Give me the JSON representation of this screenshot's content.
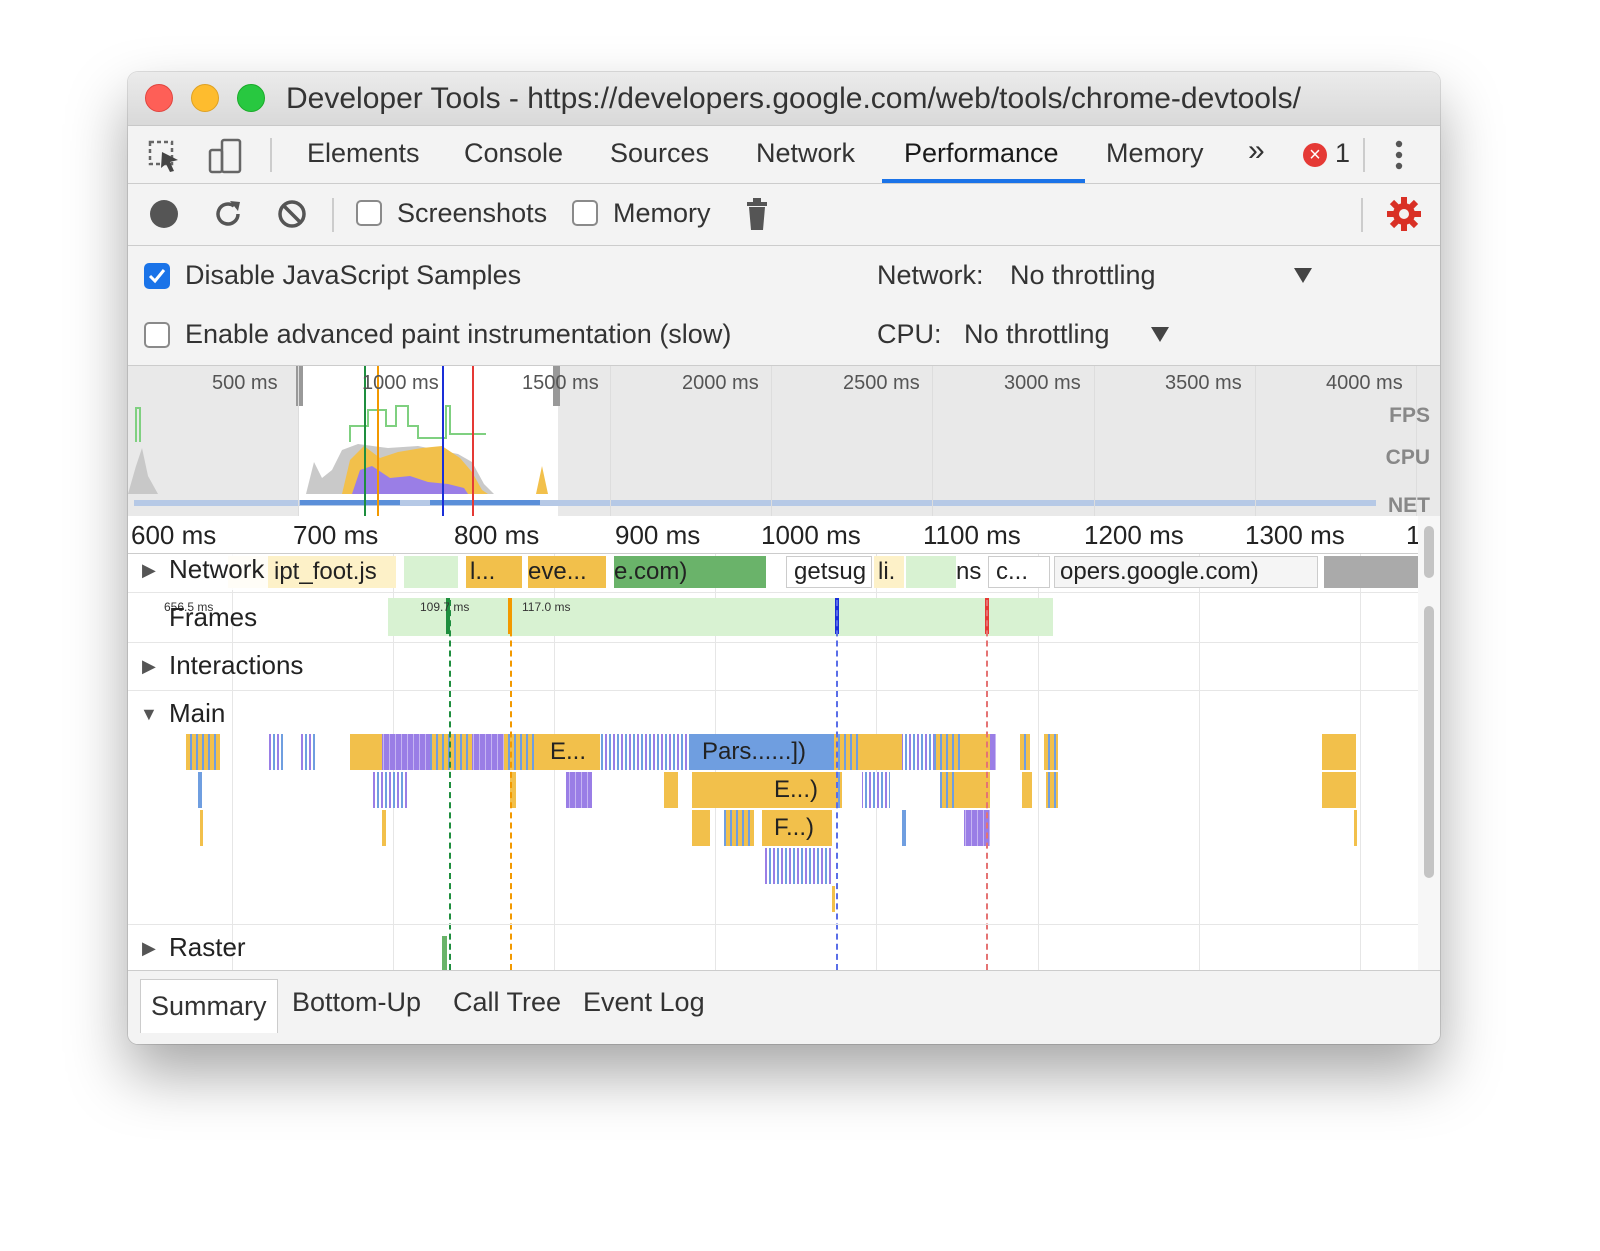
{
  "window": {
    "title": "Developer Tools - https://developers.google.com/web/tools/chrome-devtools/"
  },
  "tabs": [
    {
      "label": "Elements"
    },
    {
      "label": "Console"
    },
    {
      "label": "Sources"
    },
    {
      "label": "Network"
    },
    {
      "label": "Performance"
    },
    {
      "label": "Memory"
    }
  ],
  "tabbar": {
    "more": "»",
    "error_count": "1",
    "error_icon": "×"
  },
  "toolbar": {
    "screenshots_label": "Screenshots",
    "memory_label": "Memory",
    "screenshots_checked": false,
    "memory_checked": false
  },
  "settings": {
    "disable_js_samples": "Disable JavaScript Samples",
    "disable_js_samples_checked": true,
    "advanced_paint": "Enable advanced paint instrumentation (slow)",
    "advanced_paint_checked": false,
    "network_label": "Network:",
    "network_value": "No throttling",
    "cpu_label": "CPU:",
    "cpu_value": "No throttling"
  },
  "overview": {
    "ticks": [
      "500 ms",
      "1000 ms",
      "1500 ms",
      "2000 ms",
      "2500 ms",
      "3000 ms",
      "3500 ms",
      "4000 ms"
    ],
    "fps": "FPS",
    "cpu": "CPU",
    "net": "NET"
  },
  "ruler": {
    "ticks": [
      "600 ms",
      "700 ms",
      "800 ms",
      "900 ms",
      "1000 ms",
      "1100 ms",
      "1200 ms",
      "1300 ms",
      "1"
    ]
  },
  "tracks": {
    "network": "Network",
    "frames": "Frames",
    "interactions": "Interactions",
    "main": "Main",
    "raster": "Raster"
  },
  "network_items": [
    "ipt_foot.js",
    "l...",
    "eve...",
    "e.com)",
    "getsug",
    "li.",
    "ns",
    "c...",
    "opers.google.com)"
  ],
  "frame_labels": [
    "656.5 ms",
    "109.7 ms",
    "117.0 ms"
  ],
  "main_labels": [
    "E...",
    "Pars......])",
    "E...)",
    "F...)"
  ],
  "bottom_tabs": [
    {
      "label": "Summary"
    },
    {
      "label": "Bottom-Up"
    },
    {
      "label": "Call Tree"
    },
    {
      "label": "Event Log"
    }
  ],
  "colors": {
    "scripting": "#f2c04b",
    "rendering": "#9a7ee6",
    "loading": "#6f9ee0",
    "idle_frame": "#d8f2d2",
    "accent": "#1a73e8",
    "error": "#e53935"
  }
}
